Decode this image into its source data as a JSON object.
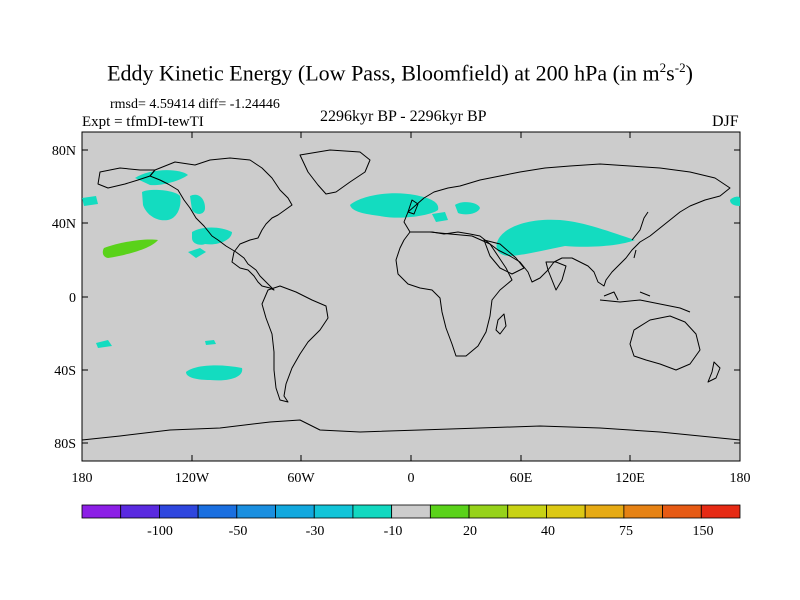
{
  "title": "Eddy Kinetic Energy (Low Pass, Bloomfield) at 200 hPa (in m",
  "title_units_exp1": "2",
  "title_units_mid": "s",
  "title_units_exp2": "-2",
  "title_close": ")",
  "stats": "rmsd= 4.59414 diff= -1.24446",
  "expt": "Expt = tfmDI-tewTI",
  "period": "2296kyr BP - 2296kyr BP",
  "season": "DJF",
  "lat_ticks": [
    "80N",
    "40N",
    "0",
    "40S",
    "80S"
  ],
  "lon_ticks": [
    "180",
    "120W",
    "60W",
    "0",
    "60E",
    "120E",
    "180"
  ],
  "colorbar": {
    "colors": [
      "#8c1fe6",
      "#5a2ae0",
      "#2e46de",
      "#1a6fe0",
      "#1a8fe0",
      "#12a8de",
      "#12c4d8",
      "#12d8c0",
      "#cccccc",
      "#5ad21a",
      "#96d21a",
      "#c8d214",
      "#dcc814",
      "#e6aa14",
      "#e68214",
      "#e65a14",
      "#e62a14"
    ],
    "labels": [
      "-100",
      "-50",
      "-30",
      "-10",
      "20",
      "40",
      "75",
      "150"
    ]
  },
  "colors": {
    "ocean_land_bg": "#cccccc",
    "neg_anomaly": "#13dcc0",
    "pos_anomaly": "#5ad21a"
  }
}
